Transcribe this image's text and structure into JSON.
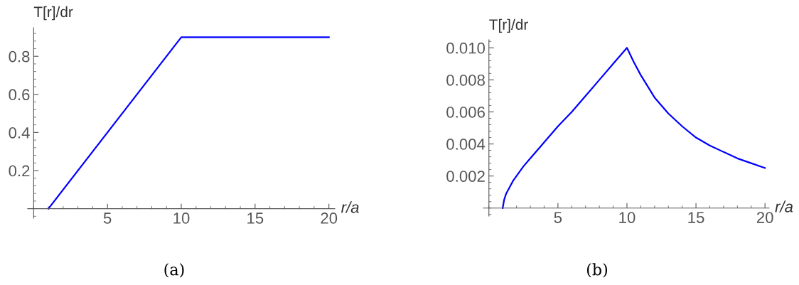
{
  "chart_data": [
    {
      "type": "line",
      "ylabel": "T[r]/dr",
      "xlabel": "r/a",
      "annotations": [
        "(a)"
      ],
      "series": [
        {
          "color": "#0000ff",
          "x": [
            1,
            10,
            20
          ],
          "values": [
            0,
            0.9,
            0.9
          ]
        }
      ],
      "xlim": [
        -0.4,
        20.4
      ],
      "ylim": [
        -0.05,
        0.95
      ],
      "xticks": [
        5,
        10,
        15,
        20
      ],
      "yticks": [
        0.2,
        0.4,
        0.6,
        0.8
      ],
      "grid": false,
      "legend": false,
      "marker": "none",
      "line_style": "solid"
    },
    {
      "type": "line",
      "ylabel": "T[r]/dr",
      "xlabel": "r/a",
      "annotations": [
        "(b)"
      ],
      "series": [
        {
          "color": "#0000ff",
          "x": [
            1,
            1.1,
            1.25,
            1.5,
            1.75,
            2,
            2.5,
            3,
            4,
            5,
            6,
            7,
            8,
            9,
            10,
            10.5,
            11,
            11.5,
            12,
            13,
            14,
            15,
            16,
            17,
            18,
            19,
            20
          ],
          "values": [
            0,
            0.0005,
            0.0009,
            0.0013,
            0.0017,
            0.002,
            0.0026,
            0.0031,
            0.0041,
            0.0051,
            0.006,
            0.007,
            0.008,
            0.009,
            0.01,
            0.0091,
            0.0083,
            0.0076,
            0.0069,
            0.0059,
            0.0051,
            0.0044,
            0.0039,
            0.0035,
            0.0031,
            0.0028,
            0.0025
          ]
        }
      ],
      "xlim": [
        -0.4,
        20.3
      ],
      "ylim": [
        -0.0005,
        0.0105
      ],
      "xticks": [
        5,
        10,
        15,
        20
      ],
      "yticks": [
        {
          "value": 0.002,
          "label": "0.002"
        },
        {
          "value": 0.004,
          "label": "0.004"
        },
        {
          "value": 0.006,
          "label": "0.006"
        },
        {
          "value": 0.008,
          "label": "0.008"
        },
        {
          "value": 0.01,
          "label": "0.010"
        }
      ],
      "grid": false,
      "legend": false,
      "marker": "none",
      "line_style": "solid"
    }
  ]
}
